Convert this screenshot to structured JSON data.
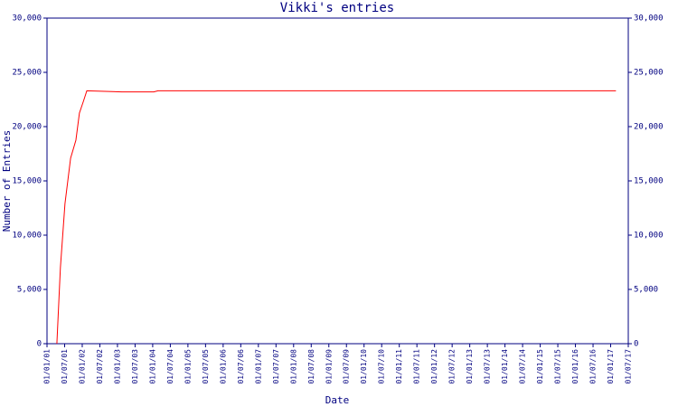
{
  "chart_data": {
    "type": "line",
    "title": "Vikki's entries",
    "xlabel": "Date",
    "ylabel": "Number of Entries",
    "x": [
      2001.28,
      2001.38,
      2001.51,
      2001.67,
      2001.82,
      2001.92,
      2002.03,
      2002.13,
      2003.13,
      2004.03,
      2004.15,
      2017.15
    ],
    "series": [
      {
        "name": "Vikki",
        "color": "#ff0000",
        "values": [
          0,
          7000,
          12900,
          17100,
          18750,
          21250,
          22300,
          23300,
          23200,
          23200,
          23300,
          23300
        ]
      }
    ],
    "xlim": [
      2001,
      2017.5
    ],
    "xticks": [
      {
        "value": 2001,
        "label": "01/01/01"
      },
      {
        "value": 2001.5,
        "label": "01/07/01"
      },
      {
        "value": 2002,
        "label": "01/01/02"
      },
      {
        "value": 2002.5,
        "label": "01/07/02"
      },
      {
        "value": 2003,
        "label": "01/01/03"
      },
      {
        "value": 2003.5,
        "label": "01/07/03"
      },
      {
        "value": 2004,
        "label": "01/01/04"
      },
      {
        "value": 2004.5,
        "label": "01/07/04"
      },
      {
        "value": 2005,
        "label": "01/01/05"
      },
      {
        "value": 2005.5,
        "label": "01/07/05"
      },
      {
        "value": 2006,
        "label": "01/01/06"
      },
      {
        "value": 2006.5,
        "label": "01/07/06"
      },
      {
        "value": 2007,
        "label": "01/01/07"
      },
      {
        "value": 2007.5,
        "label": "01/07/07"
      },
      {
        "value": 2008,
        "label": "01/01/08"
      },
      {
        "value": 2008.5,
        "label": "01/07/08"
      },
      {
        "value": 2009,
        "label": "01/01/09"
      },
      {
        "value": 2009.5,
        "label": "01/07/09"
      },
      {
        "value": 2010,
        "label": "01/01/10"
      },
      {
        "value": 2010.5,
        "label": "01/07/10"
      },
      {
        "value": 2011,
        "label": "01/01/11"
      },
      {
        "value": 2011.5,
        "label": "01/07/11"
      },
      {
        "value": 2012,
        "label": "01/01/12"
      },
      {
        "value": 2012.5,
        "label": "01/07/12"
      },
      {
        "value": 2013,
        "label": "01/01/13"
      },
      {
        "value": 2013.5,
        "label": "01/07/13"
      },
      {
        "value": 2014,
        "label": "01/01/14"
      },
      {
        "value": 2014.5,
        "label": "01/07/14"
      },
      {
        "value": 2015,
        "label": "01/01/15"
      },
      {
        "value": 2015.5,
        "label": "01/07/15"
      },
      {
        "value": 2016,
        "label": "01/01/16"
      },
      {
        "value": 2016.5,
        "label": "01/07/16"
      },
      {
        "value": 2017,
        "label": "01/01/17"
      },
      {
        "value": 2017.5,
        "label": "01/07/17"
      }
    ],
    "ylim": [
      0,
      30000
    ],
    "yticks": [
      0,
      {
        "value": 5000,
        "label": "5,000"
      },
      {
        "value": 10000,
        "label": "10,000"
      },
      {
        "value": 15000,
        "label": "15,000"
      },
      {
        "value": 20000,
        "label": "20,000"
      },
      {
        "value": 25000,
        "label": "25,000"
      },
      {
        "value": 30000,
        "label": "30,000"
      }
    ],
    "y2lim": [
      0,
      30000
    ],
    "y2ticks": [
      0,
      {
        "value": 5000,
        "label": "5,000"
      },
      {
        "value": 10000,
        "label": "10,000"
      },
      {
        "value": 15000,
        "label": "15,000"
      },
      {
        "value": 20000,
        "label": "20,000"
      },
      {
        "value": 25000,
        "label": "25,000"
      },
      {
        "value": 30000,
        "label": "30,000"
      }
    ],
    "axis_color": "#000080"
  }
}
